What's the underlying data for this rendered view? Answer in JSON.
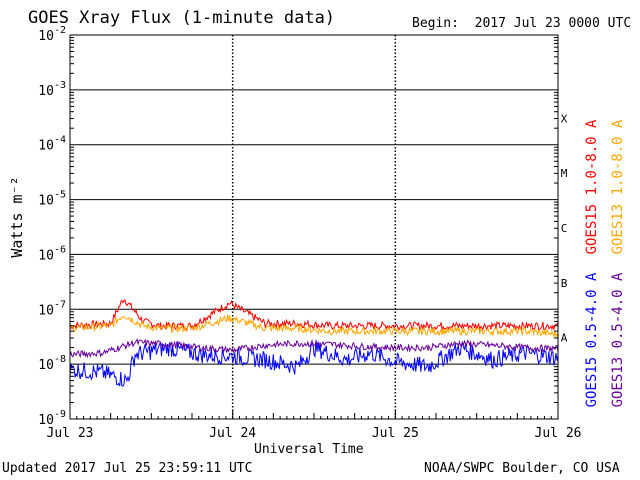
{
  "header": {
    "title": "GOES Xray Flux (1-minute data)",
    "begin": "Begin:  2017 Jul 23 0000 UTC"
  },
  "footer": {
    "updated": "Updated 2017 Jul 25 23:59:11 UTC",
    "credit": "NOAA/SWPC Boulder, CO USA"
  },
  "chart_data": {
    "type": "line",
    "title": "GOES Xray Flux (1-minute data)",
    "xlabel": "Universal Time",
    "ylabel": "Watts m⁻²",
    "y_scale": "log",
    "ylim": [
      1e-09,
      0.01
    ],
    "xlim_days": [
      0,
      3
    ],
    "x_ticks": [
      "Jul 23",
      "Jul 24",
      "Jul 25",
      "Jul 26"
    ],
    "y_ticks": [
      {
        "base": "10",
        "exp": "-9"
      },
      {
        "base": "10",
        "exp": "-8"
      },
      {
        "base": "10",
        "exp": "-7"
      },
      {
        "base": "10",
        "exp": "-6"
      },
      {
        "base": "10",
        "exp": "-5"
      },
      {
        "base": "10",
        "exp": "-4"
      },
      {
        "base": "10",
        "exp": "-3"
      },
      {
        "base": "10",
        "exp": "-2"
      }
    ],
    "flare_classes": [
      "A",
      "B",
      "C",
      "M",
      "X"
    ],
    "grid": true,
    "legend_position": "right",
    "series": [
      {
        "name": "GOES15 1.0-8.0 A",
        "color": "#ff0000",
        "x": [
          0,
          0.25,
          0.33,
          0.45,
          0.55,
          0.75,
          0.98,
          1.2,
          1.4,
          1.6,
          1.8,
          2.0,
          2.2,
          2.4,
          2.6,
          2.8,
          3.0
        ],
        "values": [
          5e-08,
          5.5e-08,
          1.6e-07,
          6e-08,
          5e-08,
          5e-08,
          1.3e-07,
          5.5e-08,
          5.5e-08,
          5e-08,
          5e-08,
          5e-08,
          5e-08,
          5e-08,
          5e-08,
          5e-08,
          5e-08
        ]
      },
      {
        "name": "GOES13 1.0-8.0 A",
        "color": "#ffa500",
        "x": [
          0,
          0.25,
          0.33,
          0.45,
          0.55,
          0.75,
          0.98,
          1.2,
          1.4,
          1.6,
          1.8,
          2.0,
          2.2,
          2.4,
          2.6,
          2.8,
          3.0
        ],
        "values": [
          4.5e-08,
          5e-08,
          8e-08,
          5e-08,
          4.5e-08,
          4.5e-08,
          7e-08,
          4.5e-08,
          4.5e-08,
          4e-08,
          4e-08,
          4e-08,
          4e-08,
          4e-08,
          4e-08,
          4e-08,
          3.5e-08
        ]
      },
      {
        "name": "GOES15 0.5-4.0 A",
        "color": "#0000ff",
        "x": [
          0,
          0.2,
          0.35,
          0.4,
          0.6,
          0.8,
          1.0,
          1.2,
          1.4,
          1.5,
          1.7,
          1.85,
          2.0,
          2.2,
          2.4,
          2.6,
          2.8,
          3.0
        ],
        "values": [
          8e-09,
          7e-09,
          5e-09,
          1.5e-08,
          2e-08,
          1.5e-08,
          1.4e-08,
          1.2e-08,
          9e-09,
          2e-08,
          1.2e-08,
          1.6e-08,
          1.1e-08,
          9e-09,
          2e-08,
          1.2e-08,
          1.6e-08,
          1.3e-08
        ]
      },
      {
        "name": "GOES13 0.5-4.0 A",
        "color": "#660099",
        "x": [
          0,
          0.2,
          0.4,
          0.6,
          0.8,
          1.0,
          1.2,
          1.4,
          1.6,
          1.8,
          2.0,
          2.2,
          2.4,
          2.6,
          2.8,
          3.0
        ],
        "values": [
          1.5e-08,
          1.6e-08,
          2.5e-08,
          2.3e-08,
          2e-08,
          1.8e-08,
          2.2e-08,
          2.4e-08,
          2.3e-08,
          2.1e-08,
          2e-08,
          2e-08,
          2.4e-08,
          2.2e-08,
          2e-08,
          1.9e-08
        ]
      }
    ]
  }
}
